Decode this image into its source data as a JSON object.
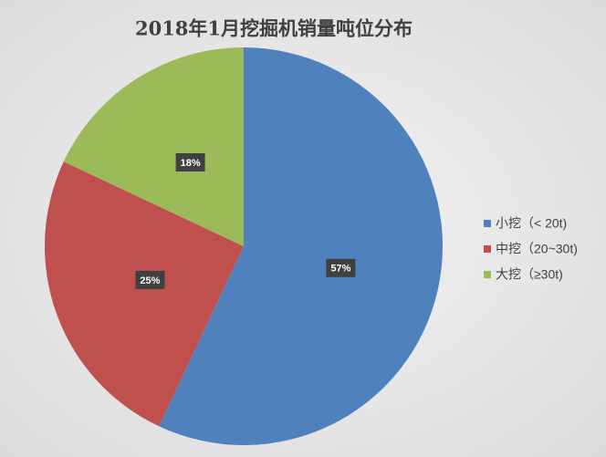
{
  "chart_data": {
    "type": "pie",
    "title": "2018年1月挖掘机销量吨位分布",
    "categories": [
      "小挖（< 20t)",
      "中挖（20~30t)",
      "大挖（≥30t)"
    ],
    "values": [
      57,
      25,
      18
    ],
    "value_labels": [
      "57%",
      "25%",
      "18%"
    ],
    "colors": [
      "#4f81bd",
      "#c0504d",
      "#9bbb59"
    ],
    "legend": "right"
  }
}
